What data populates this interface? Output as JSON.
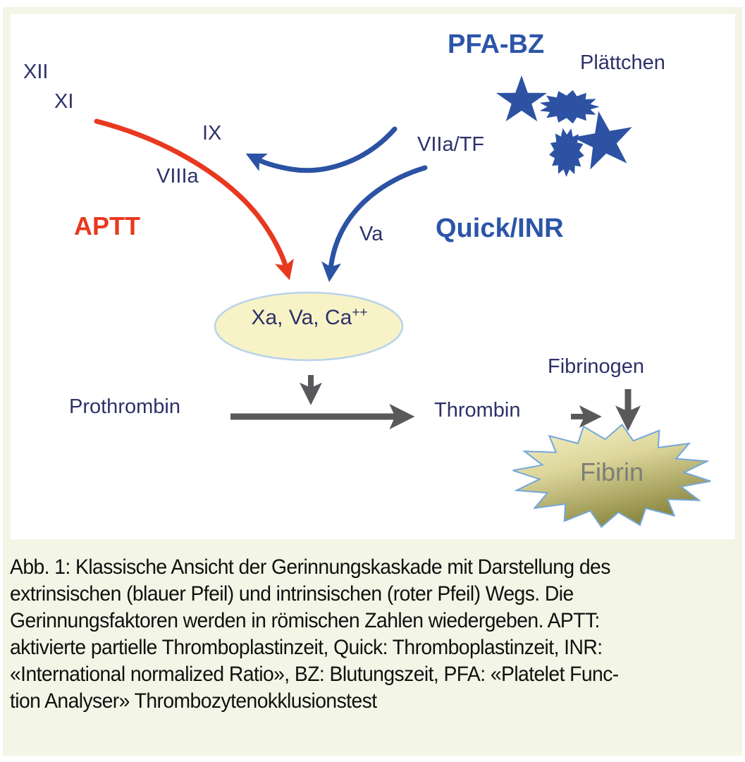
{
  "figure": {
    "labels": {
      "xii": "XII",
      "xi": "XI",
      "ix": "IX",
      "viiia": "VIIIa",
      "viia_tf": "VIIa/TF",
      "va": "Va",
      "aptt": "APTT",
      "quick_inr": "Quick/INR",
      "pfa_bz": "PFA-BZ",
      "plaettchen": "Plättchen",
      "prothrombin": "Prothrombin",
      "thrombin": "Thrombin",
      "fibrinogen": "Fibrinogen",
      "fibrin": "Fibrin",
      "complex_base": "Xa, Va, Ca",
      "complex_sup": "++"
    },
    "colors": {
      "intrinsic_arrow_red": "#e8391f",
      "extrinsic_arrow_blue": "#2b52a3",
      "factor_text_navy": "#2e3168",
      "test_label_blue": "#2b55a8",
      "panel_background": "#f3f6e6",
      "complex_ellipse_fill": "#f7f3c6",
      "complex_ellipse_stroke": "#b9d2ec",
      "fibrin_burst_light": "#f5f1c9",
      "fibrin_burst_dark": "#8e8a42",
      "fibrin_burst_stroke": "#74a7d8",
      "fibrin_text_gray": "#7d7d78",
      "gray_arrow": "#58595b"
    }
  },
  "caption": {
    "lines": [
      "Abb. 1: Klassische Ansicht der Gerinnungskaskade mit Darstellung des",
      "extrinsischen (blauer Pfeil) und intrinsischen (roter Pfeil) Wegs. Die",
      "Gerinnungsfaktoren werden in römischen Zahlen wiedergeben. APTT:",
      "aktivierte partielle Thromboplastinzeit, Quick: Thromboplastinzeit, INR:",
      "«International normalized Ratio», BZ: Blutungszeit, PFA: «Platelet Func-",
      "tion Analyser» Thrombozytenokklusionstest"
    ]
  }
}
